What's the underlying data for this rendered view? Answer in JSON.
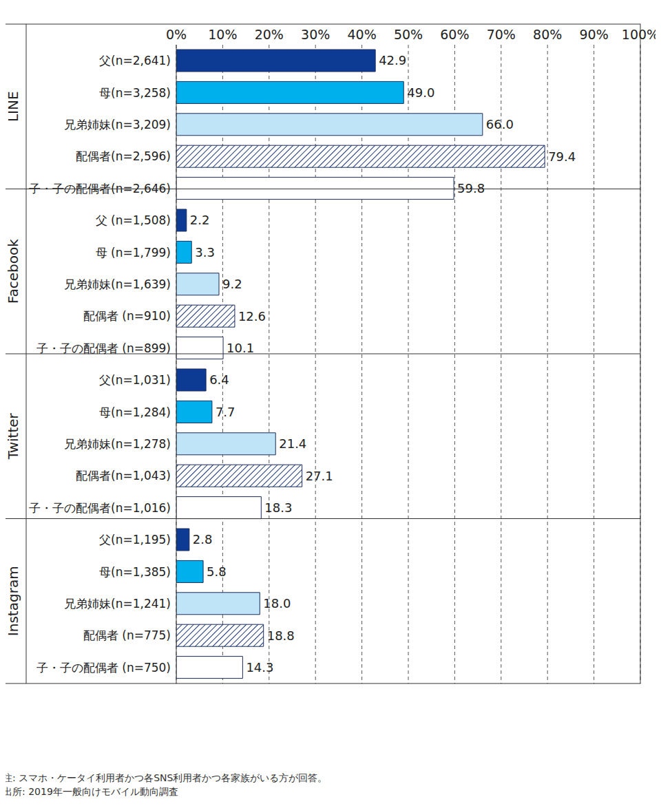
{
  "chart_data": {
    "type": "bar",
    "orientation": "horizontal",
    "grid": true,
    "data_labels": true,
    "categories": [
      "父(n=2,641)",
      "母(n=3,258)",
      "兄弟姉妹(n=3,209)",
      "配偶者(n=2,596)",
      "子・子の配偶者(n=2,646)",
      "父 (n=1,508)",
      "母 (n=1,799)",
      "兄弟姉妹(n=1,639)",
      "配偶者 (n=910)",
      "子・子の配偶者 (n=899)",
      "父(n=1,031)",
      "母(n=1,284)",
      "兄弟姉妹(n=1,278)",
      "配偶者(n=1,043)",
      "子・子の配偶者(n=1,016)",
      "父(n=1,195)",
      "母(n=1,385)",
      "兄弟姉妹(n=1,241)",
      "配偶者 (n=775)",
      "子・子の配偶者 (n=750)"
    ],
    "group": [
      "LINE",
      "LINE",
      "LINE",
      "LINE",
      "LINE",
      "Facebook",
      "Facebook",
      "Facebook",
      "Facebook",
      "Facebook",
      "Twitter",
      "Twitter",
      "Twitter",
      "Twitter",
      "Twitter",
      "Instagram",
      "Instagram",
      "Instagram",
      "Instagram",
      "Instagram"
    ],
    "values": [
      42.9,
      49.0,
      66.0,
      79.4,
      59.8,
      2.2,
      3.3,
      9.2,
      12.6,
      10.1,
      6.4,
      7.7,
      21.4,
      27.1,
      18.3,
      2.8,
      5.8,
      18.0,
      18.8,
      14.3
    ],
    "value_labels": [
      "42.9",
      "49.0",
      "66.0",
      "79.4",
      "59.8",
      "2.2",
      "3.3",
      "9.2",
      "12.6",
      "10.1",
      "6.4",
      "7.7",
      "21.4",
      "27.1",
      "18.3",
      "2.8",
      "5.8",
      "18.0",
      "18.8",
      "14.3"
    ],
    "colors": [
      "#0d3b94",
      "#00b0ec",
      "#bfe3f7",
      "#1f3a7a",
      "#ffffff",
      "#0d3b94",
      "#00b0ec",
      "#bfe3f7",
      "#1f3a7a",
      "#ffffff",
      "#0d3b94",
      "#00b0ec",
      "#bfe3f7",
      "#1f3a7a",
      "#ffffff",
      "#0d3b94",
      "#00b0ec",
      "#bfe3f7",
      "#1f3a7a",
      "#ffffff"
    ],
    "fill": [
      "solid",
      "solid",
      "solid",
      "hatch",
      "solid",
      "solid",
      "solid",
      "solid",
      "hatch",
      "solid",
      "solid",
      "solid",
      "solid",
      "hatch",
      "solid",
      "solid",
      "solid",
      "solid",
      "hatch",
      "solid"
    ],
    "xlim": [
      0,
      100
    ],
    "xticks": [
      {
        "value": 0,
        "label": "0%"
      },
      {
        "value": 10,
        "label": "10%"
      },
      {
        "value": 20,
        "label": "20%"
      },
      {
        "value": 30,
        "label": "30%"
      },
      {
        "value": 40,
        "label": "40%"
      },
      {
        "value": 50,
        "label": "50%"
      },
      {
        "value": 60,
        "label": "60%"
      },
      {
        "value": 70,
        "label": "70%"
      },
      {
        "value": 80,
        "label": "80%"
      },
      {
        "value": 90,
        "label": "90%"
      },
      {
        "value": 100,
        "label": "100%"
      }
    ],
    "notes": [
      "注: スマホ・ケータイ利用者かつ各SNS利用者かつ各家族がいる方が回答。",
      "出所: 2019年一般向けモバイル動向調査"
    ]
  }
}
